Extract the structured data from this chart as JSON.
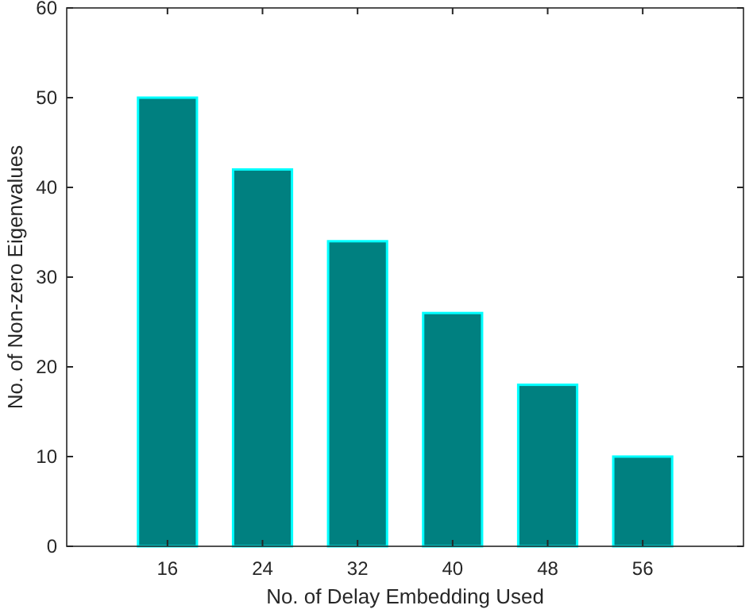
{
  "chart_data": {
    "type": "bar",
    "xlabel": "No. of Delay Embedding Used",
    "ylabel": "No. of Non-zero Eigenvalues",
    "categories": [
      "16",
      "24",
      "32",
      "40",
      "48",
      "56"
    ],
    "values": [
      50,
      42,
      34,
      26,
      18,
      10
    ],
    "color": "#008080",
    "ylim": [
      0,
      60
    ],
    "yticks": [
      0,
      10,
      20,
      30,
      40,
      50,
      60
    ],
    "grid": false
  }
}
